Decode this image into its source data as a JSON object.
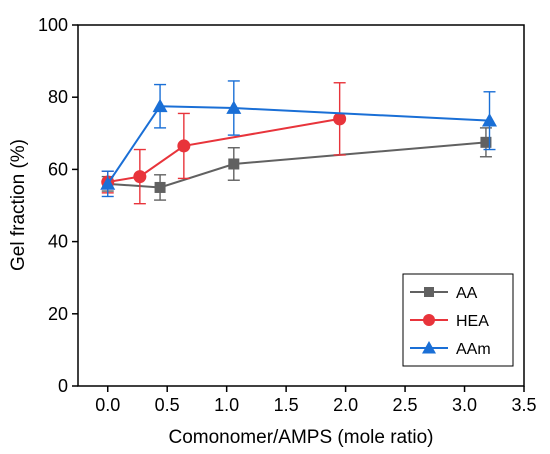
{
  "chart_data": {
    "type": "line",
    "xlabel": "Comonomer/AMPS (mole ratio)",
    "ylabel": "Gel fraction (%)",
    "xlim": [
      -0.25,
      3.5
    ],
    "ylim": [
      0,
      100
    ],
    "xticks": [
      "0.0",
      "0.5",
      "1.0",
      "1.5",
      "2.0",
      "2.5",
      "3.0",
      "3.5"
    ],
    "yticks": [
      "0",
      "20",
      "40",
      "60",
      "80",
      "100"
    ],
    "grid": false,
    "legend_position": "bottom-right",
    "series": [
      {
        "name": "AA",
        "color": "#616161",
        "marker": "square",
        "x": [
          0.0,
          0.44,
          1.06,
          3.18
        ],
        "y": [
          56.0,
          55.0,
          61.5,
          67.5
        ],
        "err": [
          2.0,
          3.5,
          4.5,
          4.0
        ]
      },
      {
        "name": "HEA",
        "color": "#e8343b",
        "marker": "circle",
        "x": [
          0.0,
          0.27,
          0.64,
          1.95
        ],
        "y": [
          56.5,
          58.0,
          66.5,
          74.0
        ],
        "err": [
          3.0,
          7.5,
          9.0,
          10.0
        ]
      },
      {
        "name": "AAm",
        "color": "#1a6fd6",
        "marker": "triangle",
        "x": [
          0.0,
          0.44,
          1.06,
          3.21
        ],
        "y": [
          56.0,
          77.5,
          77.0,
          73.5
        ],
        "err": [
          3.5,
          6.0,
          7.5,
          8.0
        ]
      }
    ]
  }
}
